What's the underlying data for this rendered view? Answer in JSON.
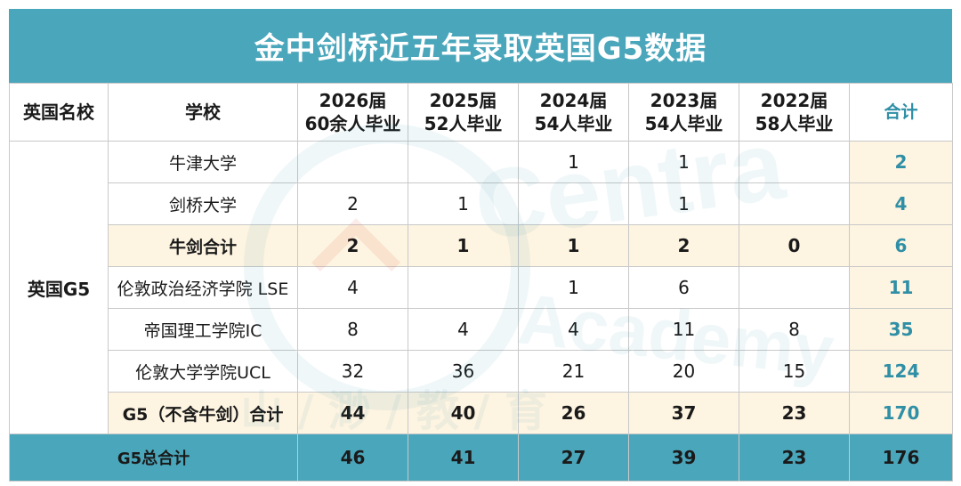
{
  "title": "金中剑桥近五年录取英国G5数据",
  "header": {
    "category": "英国名校",
    "school": "学校",
    "years": [
      {
        "year": "2026届",
        "grads": "60余人毕业"
      },
      {
        "year": "2025届",
        "grads": "52人毕业"
      },
      {
        "year": "2024届",
        "grads": "54人毕业"
      },
      {
        "year": "2023届",
        "grads": "54人毕业"
      },
      {
        "year": "2022届",
        "grads": "58人毕业"
      }
    ],
    "total": "合计"
  },
  "group_label": "英国G5",
  "rows": [
    {
      "school": "牛津大学",
      "values": [
        "",
        "",
        "1",
        "1",
        ""
      ],
      "total": "2"
    },
    {
      "school": "剑桥大学",
      "values": [
        "2",
        "1",
        "",
        "1",
        ""
      ],
      "total": "4"
    },
    {
      "school": "牛剑合计",
      "values": [
        "2",
        "1",
        "1",
        "2",
        "0"
      ],
      "total": "6"
    },
    {
      "school": "伦敦政治经济学院 LSE",
      "values": [
        "4",
        "",
        "1",
        "6",
        ""
      ],
      "total": "11"
    },
    {
      "school": "帝国理工学院IC",
      "values": [
        "8",
        "4",
        "4",
        "11",
        "8"
      ],
      "total": "35"
    },
    {
      "school": "伦敦大学学院UCL",
      "values": [
        "32",
        "36",
        "21",
        "20",
        "15"
      ],
      "total": "124"
    },
    {
      "school": "G5（不含牛剑）合计",
      "values": [
        "44",
        "40",
        "26",
        "37",
        "23"
      ],
      "total": "170"
    }
  ],
  "grand_total": {
    "label": "G5总合计",
    "values": [
      "46",
      "41",
      "27",
      "39",
      "23"
    ],
    "total": "176"
  },
  "colors": {
    "accent": "#4aa6bb",
    "highlight_text": "#2f8fa6",
    "highlight_bg": "#fdf4e1"
  },
  "watermark": {
    "brand": "Centra",
    "sub": "Academy",
    "chars": "山 / 渺 / 教 / 育"
  }
}
